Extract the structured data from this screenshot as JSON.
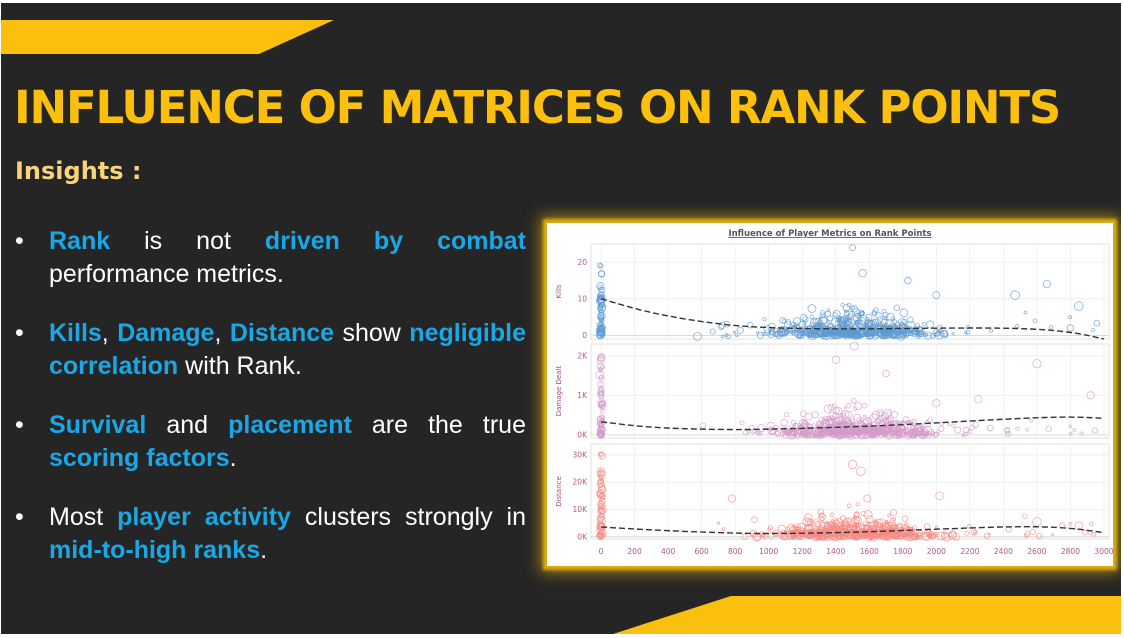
{
  "slide": {
    "title": "INFLUENCE OF MATRICES ON RANK POINTS",
    "subtitle": "Insights :",
    "bullets": [
      {
        "segments": [
          {
            "text": "Rank",
            "hl": true
          },
          {
            "text": " is not ",
            "hl": false
          },
          {
            "text": "driven by combat",
            "hl": true
          },
          {
            "text": " performance metrics.",
            "hl": false
          }
        ]
      },
      {
        "segments": [
          {
            "text": "Kills",
            "hl": true
          },
          {
            "text": ", ",
            "hl": false
          },
          {
            "text": "Damage",
            "hl": true
          },
          {
            "text": ", ",
            "hl": false
          },
          {
            "text": "Distance",
            "hl": true
          },
          {
            "text": " show ",
            "hl": false
          },
          {
            "text": "negligible correlation",
            "hl": true
          },
          {
            "text": " with Rank.",
            "hl": false
          }
        ]
      },
      {
        "segments": [
          {
            "text": "Survival",
            "hl": true
          },
          {
            "text": " and ",
            "hl": false
          },
          {
            "text": "placement",
            "hl": true
          },
          {
            "text": " are the true ",
            "hl": false
          },
          {
            "text": "scoring factors",
            "hl": true
          },
          {
            "text": ".",
            "hl": false
          }
        ]
      },
      {
        "segments": [
          {
            "text": "Most ",
            "hl": false
          },
          {
            "text": "player activity",
            "hl": true
          },
          {
            "text": " clusters strongly in ",
            "hl": false
          },
          {
            "text": "mid-to-high ranks",
            "hl": true
          },
          {
            "text": ".",
            "hl": false
          }
        ]
      }
    ],
    "bullet_glyph": "•",
    "colors": {
      "background": "#252525",
      "accent": "#fbbf0e",
      "highlight": "#1aa7e6",
      "subtitle": "#f7d37a"
    }
  },
  "chart_data": {
    "type": "scatter",
    "title": "Influence of Player Metrics on Rank Points",
    "xlabel": "",
    "x_ticks": [
      0,
      200,
      400,
      600,
      800,
      1000,
      1200,
      1400,
      1600,
      1800,
      2000,
      2200,
      2400,
      2600,
      2800,
      3000
    ],
    "xlim": [
      -60,
      3030
    ],
    "panels": [
      {
        "name": "Kills",
        "ylabel": "Kills",
        "color": "#5e9bd1",
        "ylim": [
          -1,
          25
        ],
        "y_ticks": [
          0,
          10,
          20
        ],
        "y_tick_labels": [
          "0",
          "10",
          "20"
        ],
        "cluster_center": [
          1500,
          3
        ],
        "cluster_spread": [
          230,
          4
        ],
        "zero_column_max": 20,
        "outliers": [
          [
            1500,
            24
          ],
          [
            1560,
            17
          ],
          [
            1830,
            15
          ],
          [
            2000,
            11
          ],
          [
            2470,
            11
          ],
          [
            2660,
            14
          ],
          [
            2850,
            8
          ],
          [
            2800,
            2
          ],
          [
            1200,
            3
          ]
        ],
        "trend": [
          [
            0,
            10
          ],
          [
            300,
            6
          ],
          [
            700,
            3
          ],
          [
            1000,
            2
          ],
          [
            1500,
            1.7
          ],
          [
            2000,
            2
          ],
          [
            2500,
            2
          ],
          [
            2800,
            1
          ],
          [
            3000,
            -1
          ]
        ]
      },
      {
        "name": "Damage Dealt",
        "ylabel": "Damage Dealt",
        "color": "#d49ac9",
        "ylim": [
          -80,
          2300
        ],
        "y_ticks": [
          0,
          1000,
          2000
        ],
        "y_tick_labels": [
          "0K",
          "1K",
          "2K"
        ],
        "cluster_center": [
          1500,
          230
        ],
        "cluster_spread": [
          240,
          330
        ],
        "zero_column_max": 2000,
        "outliers": [
          [
            1510,
            2450
          ],
          [
            1400,
            1900
          ],
          [
            1700,
            1550
          ],
          [
            2600,
            1800
          ],
          [
            2920,
            1000
          ],
          [
            2000,
            800
          ],
          [
            2250,
            900
          ]
        ],
        "trend": [
          [
            0,
            330
          ],
          [
            300,
            180
          ],
          [
            700,
            130
          ],
          [
            1000,
            140
          ],
          [
            1500,
            200
          ],
          [
            2000,
            300
          ],
          [
            2500,
            420
          ],
          [
            2800,
            460
          ],
          [
            3000,
            420
          ]
        ]
      },
      {
        "name": "Distance",
        "ylabel": "Distance",
        "color": "#f78b86",
        "ylim": [
          -800,
          34000
        ],
        "y_ticks": [
          0,
          10000,
          20000,
          30000
        ],
        "y_tick_labels": [
          "0K",
          "10K",
          "20K",
          "30K"
        ],
        "cluster_center": [
          1500,
          4000
        ],
        "cluster_spread": [
          240,
          4500
        ],
        "zero_column_max": 32000,
        "outliers": [
          [
            1500,
            26500
          ],
          [
            1550,
            24000
          ],
          [
            780,
            14000
          ],
          [
            2020,
            15000
          ],
          [
            2600,
            5500
          ],
          [
            2850,
            4000
          ]
        ],
        "trend": [
          [
            0,
            3600
          ],
          [
            300,
            2500
          ],
          [
            700,
            1500
          ],
          [
            1000,
            1100
          ],
          [
            1500,
            1600
          ],
          [
            2000,
            2800
          ],
          [
            2500,
            3900
          ],
          [
            2800,
            3300
          ],
          [
            3000,
            1500
          ]
        ]
      }
    ],
    "grid": true,
    "legend": "none"
  }
}
